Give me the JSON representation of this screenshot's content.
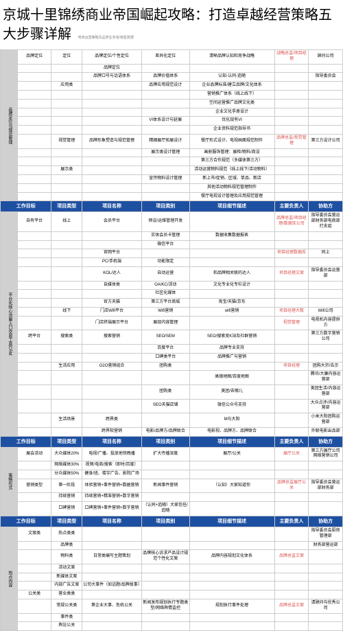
{
  "title": "京城十里锦绣商业帝国崛起攻略：打造卓越经营策略五大步骤详解",
  "subtitle": "电商运营策略及品类业务组/销售数据",
  "headers": {
    "h1": "工作目标",
    "h2": "项目类型",
    "h3": "项目名称",
    "h4": "项目类别",
    "h5": "项目细节描述",
    "h6": "主要负责人",
    "h7": "协助方"
  },
  "section1": {
    "name": "品牌定位与规范管理",
    "rows": [
      {
        "type": "品牌定位",
        "sub": "定位",
        "name": "品牌定位/个性定位",
        "topic": "差异化定位",
        "detail": "清晰品牌认知和竞争战略",
        "owner": "战略总监/项目经理",
        "partner": "顾问公司"
      },
      {
        "type": "",
        "sub": "",
        "name": "品牌定位",
        "topic": "",
        "detail": "",
        "owner": "",
        "partner": ""
      },
      {
        "type": "",
        "sub": "",
        "name": "品牌口号与话语体系",
        "topic": "品牌价值体系",
        "detail": "认知-认同-追随",
        "owner": "",
        "partner": "指导委员会"
      },
      {
        "type": "",
        "sub": "应用类",
        "name": "",
        "topic": "品牌应用规范设计",
        "detail": "企业品牌标准/建立品牌/文化体系",
        "owner": "",
        "partner": ""
      },
      {
        "type": "",
        "sub": "",
        "name": "",
        "topic": "",
        "detail": "营销推广体系（线上线下）",
        "owner": "",
        "partner": ""
      },
      {
        "type": "",
        "sub": "",
        "name": "",
        "topic": "",
        "detail": "空间运营推广品牌文化类",
        "owner": "",
        "partner": ""
      },
      {
        "type": "",
        "sub": "",
        "name": "",
        "topic": "",
        "detail": "企业文化手册设计",
        "owner": "",
        "partner": ""
      },
      {
        "type": "",
        "sub": "",
        "name": "",
        "topic": "VI体系设计与延展",
        "detail": "优化现有VI",
        "owner": "",
        "partner": ""
      },
      {
        "type": "",
        "sub": "",
        "name": "",
        "topic": "",
        "detail": "企业资料规范指导书",
        "owner": "",
        "partner": ""
      },
      {
        "type": "",
        "sub": "视觉管理",
        "name": "品牌形象塑造与规范管理",
        "topic": "精细展厅拓展设计",
        "detail": "餐厅形式设计、电视画面规范制作",
        "owner": "品牌总监/视觉管理",
        "partner": "第三方设计公司"
      },
      {
        "type": "",
        "sub": "",
        "name": "",
        "topic": "展示类设计管理",
        "detail": "画册服饰管理：展柜/物料/商设",
        "owner": "",
        "partner": ""
      },
      {
        "type": "",
        "sub": "",
        "name": "",
        "topic": "",
        "detail": "第三方合作规范（多媒体第三方）",
        "owner": "",
        "partner": ""
      },
      {
        "type": "",
        "sub": "展示类",
        "name": "",
        "topic": "",
        "detail": "活动运营物料规范（线上线下/活动物料）",
        "owner": "",
        "partner": ""
      },
      {
        "type": "",
        "sub": "",
        "name": "",
        "topic": "宣传物料设计管理",
        "detail": "新上市/促销、区域、单品、新店",
        "owner": "",
        "partner": ""
      },
      {
        "type": "",
        "sub": "",
        "name": "",
        "topic": "",
        "detail": "其他活动物料规范管理制作",
        "owner": "",
        "partner": ""
      },
      {
        "type": "",
        "sub": "",
        "name": "",
        "topic": "",
        "detail": "餐厅电视设计管理及应用规范管理",
        "owner": "",
        "partner": ""
      }
    ]
  },
  "section2": {
    "name": "平台化核心流量入口交易工具CRM",
    "rows": [
      {
        "type": "自有平台",
        "sub": "线上",
        "name": "会员平台",
        "topic": "预设/运维管理开发",
        "detail": "",
        "owner": "品牌总监/项目经理/数据库公司",
        "partner": "指导委员会营运部财务部电商部打支组"
      },
      {
        "type": "",
        "sub": "",
        "name": "",
        "topic": "实体会员卡管理",
        "detail": "数据收集数据报表",
        "owner": "",
        "partner": ""
      },
      {
        "type": "",
        "sub": "",
        "name": "",
        "topic": "微信平台",
        "detail": "",
        "owner": "",
        "partner": ""
      },
      {
        "type": "",
        "sub": "",
        "name": "官网平台",
        "topic": "",
        "detail": "",
        "owner": "项目经理数据库",
        "partner": "同上"
      },
      {
        "type": "",
        "sub": "",
        "name": "PC/手机端",
        "topic": "功能限定",
        "detail": "",
        "owner": "",
        "partner": ""
      },
      {
        "type": "",
        "sub": "",
        "name": "KOL/达人",
        "topic": "自动运营",
        "detail": "和品牌相关联的达人",
        "owner": "项目经理文案",
        "partner": "指导委员会运营部"
      },
      {
        "type": "",
        "sub": "",
        "name": "自媒体类",
        "topic": "OA/KC/活动",
        "detail": "文化专业化专栏设计",
        "owner": "",
        "partner": ""
      },
      {
        "type": "",
        "sub": "",
        "name": "",
        "topic": "社区化媒体",
        "detail": "",
        "owner": "",
        "partner": ""
      },
      {
        "type": "",
        "sub": "",
        "name": "官方天猫",
        "topic": "第三方平台商城",
        "detail": "淘宝/天猫/京东",
        "owner": "",
        "partner": ""
      },
      {
        "type": "",
        "sub": "线下",
        "name": "门店Wifi平台",
        "topic": "Wifi营销",
        "detail": "wifi营销",
        "owner": "项目经理大数",
        "partner": "Wifi公司"
      },
      {
        "type": "",
        "sub": "",
        "name": "门店终端展示平台",
        "topic": "展现内容管理",
        "detail": "",
        "owner": "视觉管理",
        "partner": "电视机内容提供方"
      },
      {
        "type": "跨平台",
        "sub": "搜索类",
        "name": "搜索营销",
        "topic": "SEO/SEM",
        "detail": "SEO/搜索竞K站及社群营销",
        "owner": "",
        "partner": "第三方数字营销公司"
      },
      {
        "type": "",
        "sub": "",
        "name": "",
        "topic": "百度平台",
        "detail": "品牌专业支持",
        "owner": "",
        "partner": ""
      },
      {
        "type": "",
        "sub": "",
        "name": "",
        "topic": "口碑类平台",
        "detail": "品牌推广与营销",
        "owner": "",
        "partner": ""
      },
      {
        "type": "",
        "sub": "生活应用",
        "name": "O2O营销组合",
        "topic": "团购类",
        "detail": "",
        "owner": "项目经理",
        "partner": "团购大宗/告示"
      },
      {
        "type": "",
        "sub": "",
        "name": "",
        "topic": "",
        "detail": "高德地图/百度地图",
        "owner": "",
        "partner": "腾讯/大康内容运营部"
      },
      {
        "type": "",
        "sub": "",
        "name": "",
        "topic": "团购类",
        "detail": "美团/去哪儿",
        "owner": "",
        "partner": "美团生活/内容运营部"
      },
      {
        "type": "",
        "sub": "",
        "name": "",
        "topic": "SEO天猫店铺",
        "detail": "微信公众号支持",
        "owner": "",
        "partner": "大众点评/内容运营部"
      },
      {
        "type": "",
        "sub": "生活场景",
        "name": "跨界类",
        "topic": "",
        "detail": "M与大阳",
        "owner": "",
        "partner": "小米大阳团购运营部"
      },
      {
        "type": "",
        "sub": "",
        "name": "跨界软营销",
        "topic": "电影/品牌方/品牌联合",
        "detail": "电影视、品牌方、品牌联合",
        "owner": "",
        "partner": "外联电影出品部"
      }
    ]
  },
  "section3": {
    "name": "策略形式",
    "rows": [
      {
        "type": "展会活动",
        "sub": "大众媒体20%",
        "name": "电视/广播、投放地铁晚播",
        "topic": "扩大传播深度",
        "detail": "展厅/公关",
        "owner": "展厅公关",
        "partner": "第三方展厅公司网络营销公司"
      },
      {
        "type": "",
        "sub": "网络媒体30%",
        "name": "视频/电商/搜索（即时/百度）",
        "topic": "",
        "detail": "",
        "owner": "",
        "partner": ""
      },
      {
        "type": "",
        "sub": "分众媒体50%",
        "name": "健身/班、楼宇广告、影院广场",
        "topic": "",
        "detail": "",
        "owner": "",
        "partner": ""
      },
      {
        "type": "营销类型",
        "sub": "第一阶段",
        "name": "体验营销+事件营销+数据营销",
        "topic": "新闻事件营销",
        "detail": "（认知）大家知道你",
        "owner": "品牌总监展厅公关",
        "partner": "指导委员会营运部财务部"
      },
      {
        "type": "",
        "sub": "持续营销",
        "name": "持续营销+精准营销+数字营销",
        "topic": "",
        "detail": "",
        "owner": "",
        "partner": ""
      },
      {
        "type": "",
        "sub": "口碑营销",
        "name": "口碑营销+事件营销+数字营销",
        "topic": "（认同+追随）大家信任/追随",
        "detail": "",
        "owner": "",
        "partner": ""
      }
    ]
  },
  "section4": {
    "name": "热点内容",
    "rows": [
      {
        "type": "文案类",
        "sub": "热点类类",
        "name": "",
        "topic": "",
        "detail": "",
        "owner": "",
        "partner": "指导委员会厨房管理部"
      },
      {
        "type": "",
        "sub": "品牌类",
        "name": "",
        "topic": "",
        "detail": "",
        "owner": "",
        "partner": "财务部营运部"
      },
      {
        "type": "",
        "sub": "物料类",
        "name": "日常类编写主题策划",
        "topic": "品牌核心诉求产品设计规范个性化文案",
        "detail": "品牌内容规划文化体系",
        "owner": "品牌总监文案",
        "partner": ""
      },
      {
        "type": "",
        "sub": "活动文案",
        "name": "",
        "topic": "",
        "detail": "",
        "owner": "",
        "partner": ""
      },
      {
        "type": "",
        "sub": "新媒体文案",
        "name": "",
        "topic": "",
        "detail": "",
        "owner": "",
        "partner": ""
      },
      {
        "type": "",
        "sub": "内部广告文案",
        "name": "公司大事件（如话题/品牌故事）",
        "topic": "",
        "detail": "",
        "owner": "",
        "partner": ""
      },
      {
        "type": "公关类",
        "sub": "营业类类",
        "name": "",
        "topic": "",
        "detail": "",
        "owner": "",
        "partner": ""
      },
      {
        "type": "",
        "sub": "常规公关类",
        "name": "第企业大事、危机公关",
        "topic": "新闻发布规划执行专题类型/网络舆情监控",
        "detail": "规划执行事件处理",
        "owner": "品牌总监文案",
        "partner": "请顾问与优秀公司"
      },
      {
        "type": "",
        "sub": "事件类",
        "name": "",
        "topic": "",
        "detail": "",
        "owner": "",
        "partner": ""
      },
      {
        "type": "",
        "sub": "舆论公关",
        "name": "",
        "topic": "",
        "detail": "",
        "owner": "",
        "partner": ""
      }
    ]
  }
}
